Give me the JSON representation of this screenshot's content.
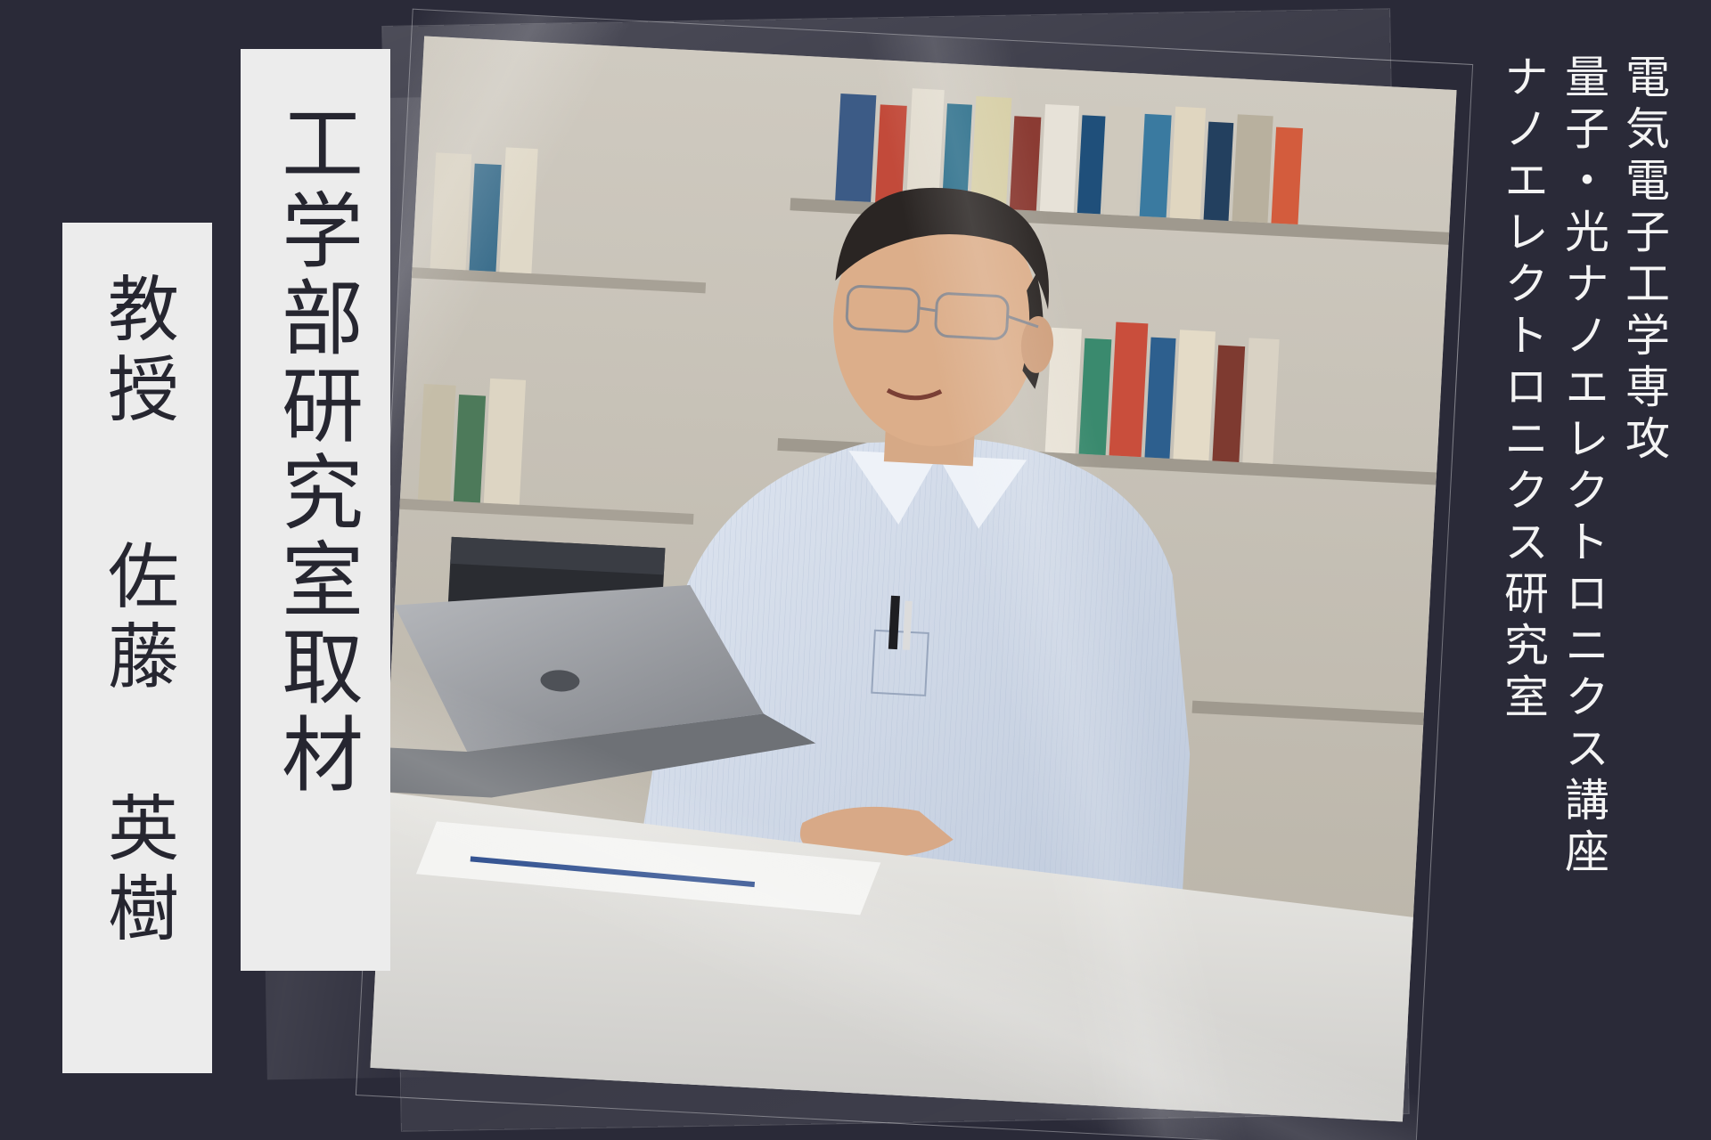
{
  "header": {
    "title": "工学部研究室取材"
  },
  "person": {
    "title": "教授",
    "name": "佐藤 英樹"
  },
  "department": {
    "lines": [
      "電気電子工学専攻",
      "量子・光ナノエレクトロニクス講座",
      "ナノエレクトロニクス研究室"
    ]
  },
  "colors": {
    "background": "#2a2a38",
    "label_box": "#ececec",
    "label_text": "#262630",
    "dept_text": "#f4f4f4"
  }
}
